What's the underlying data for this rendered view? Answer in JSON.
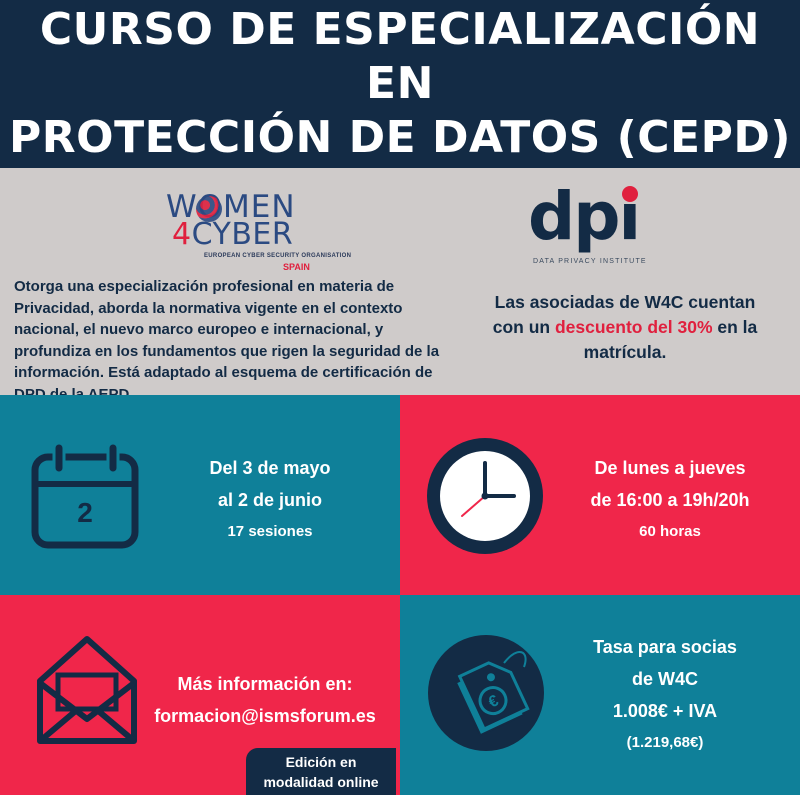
{
  "header": {
    "title_line1": "CURSO DE ESPECIALIZACIÓN EN",
    "title_line2": "PROTECCIÓN DE DATOS (CEPD)"
  },
  "logos": {
    "w4c_row1": "WOMEN",
    "w4c_row2_num": "4",
    "w4c_row2_word": "CYBER",
    "w4c_sub": "EUROPEAN CYBER SECURITY ORGANISATION",
    "w4c_spain": "SPAIN",
    "dpi_name": "dpi",
    "dpi_sub": "DATA PRIVACY INSTITUTE"
  },
  "description": "Otorga una especialización profesional en materia de Privacidad, aborda la normativa vigente en el contexto nacional, el nuevo marco europeo e internacional, y profundiza en los fundamentos que rigen la seguridad de la información. Está adaptado al esquema de certificación de DPD de la AEPD.",
  "discount": {
    "before": "Las asociadas de W4C cuentan con un ",
    "highlight": "descuento del 30%",
    "after": " en la matrícula."
  },
  "dates": {
    "calendar_day": "2",
    "line1": "Del 3 de mayo",
    "line2": "al 2 de junio",
    "line3": "17 sesiones"
  },
  "schedule": {
    "line1": "De lunes a jueves",
    "line2": "de 16:00 a 19h/20h",
    "line3": "60 horas"
  },
  "contact": {
    "line1": "Más información en:",
    "line2": "formacion@ismsforum.es"
  },
  "price": {
    "line1": "Tasa para socias",
    "line2": "de W4C",
    "line3": "1.008€ + IVA",
    "line4": "(1.219,68€)"
  },
  "online": {
    "line1": "Edición en",
    "line2": "modalidad online"
  },
  "colors": {
    "navy": "#132b45",
    "teal": "#0f8099",
    "red": "#f0264a",
    "grey": "#cfcbca"
  },
  "icons": [
    "calendar-icon",
    "clock-icon",
    "envelope-icon",
    "price-tag-icon"
  ]
}
